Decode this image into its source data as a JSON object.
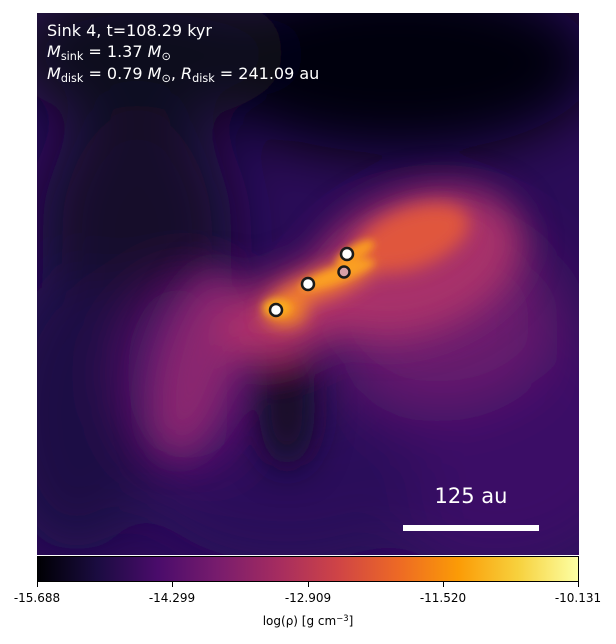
{
  "overlay": {
    "title": "Sink 4, t=108.29 kyr",
    "sink_mass": {
      "symbol": "M",
      "subscript": "sink",
      "value": "= 1.37",
      "unit": "M",
      "unit_subscript": "⊙"
    },
    "disk": {
      "mass_symbol": "M",
      "mass_subscript": "disk",
      "mass_value": "= 0.79",
      "mass_unit": "M",
      "mass_unit_subscript": "⊙",
      "separator": ",",
      "radius_symbol": "R",
      "radius_subscript": "disk",
      "radius_value": "= 241.09 au"
    }
  },
  "scale_bar": {
    "label": "125 au"
  },
  "colorbar": {
    "colormap": "inferno",
    "min": -15.688,
    "max": -10.131,
    "ticks": [
      "-15.688",
      "-14.299",
      "-12.909",
      "-11.520",
      "-10.131"
    ],
    "label_prefix": "log(ρ) [g cm",
    "label_exp": "−3",
    "label_suffix": "]"
  },
  "sinks": [
    {
      "fill": "#ffffff"
    },
    {
      "fill": "#ffffff"
    },
    {
      "fill": "#ffffff"
    },
    {
      "fill": "#d9a0a6"
    }
  ]
}
